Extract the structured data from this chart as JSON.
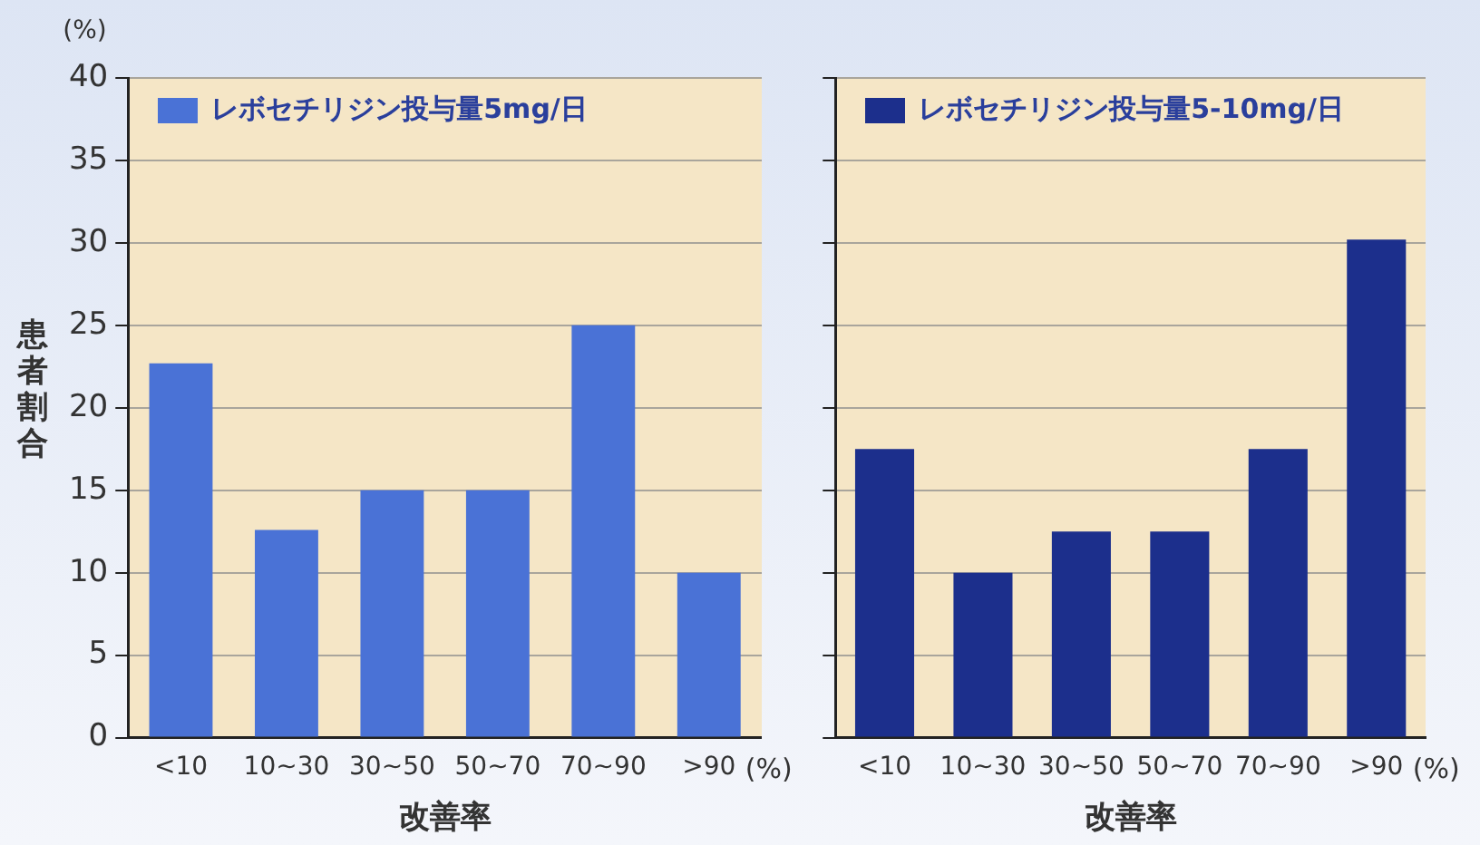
{
  "chart_data": [
    {
      "type": "bar",
      "xlabel": "改善率",
      "ylabel": "患者割合",
      "categories": [
        "<10",
        "10~30",
        "30~50",
        "50~70",
        "70~90",
        ">90"
      ],
      "series": [
        {
          "name": "レボセチリジン投与量5mg/日",
          "color": "#4a72d6",
          "values": [
            22.7,
            12.6,
            15,
            15,
            25,
            10
          ]
        }
      ],
      "ylim": [
        0,
        40
      ],
      "yticks": [
        0,
        5,
        10,
        15,
        20,
        25,
        30,
        35,
        40
      ],
      "grid": "y",
      "legend": "top left",
      "annotations": [
        "(%)",
        "(%)"
      ]
    },
    {
      "type": "bar",
      "xlabel": "改善率",
      "categories": [
        "<10",
        "10~30",
        "30~50",
        "50~70",
        "70~90",
        ">90"
      ],
      "series": [
        {
          "name": "レボセチリジン投与量5-10mg/日",
          "color": "#1c2f8c",
          "values": [
            17.5,
            10,
            12.5,
            12.5,
            17.5,
            30.2
          ]
        }
      ],
      "ylim": [
        0,
        40
      ],
      "yticks": [
        0,
        5,
        10,
        15,
        20,
        25,
        30,
        35,
        40
      ],
      "grid": "y",
      "legend": "top left",
      "tick_labels": "x",
      "annotations": [
        "(%)"
      ]
    }
  ]
}
